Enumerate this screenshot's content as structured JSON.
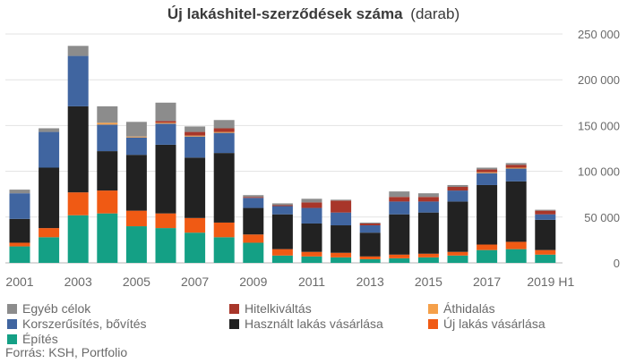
{
  "chart_data": {
    "type": "bar",
    "stacked": true,
    "title_bold": "Új lakáshitel-szerződések száma",
    "title_rest": "(darab)",
    "categories": [
      "2001",
      "2002",
      "2003",
      "2004",
      "2005",
      "2006",
      "2007",
      "2008",
      "2009",
      "2010",
      "2011",
      "2012",
      "2013",
      "2014",
      "2015",
      "2016",
      "2017",
      "2018",
      "2019 H1"
    ],
    "x_tick_labels": [
      "2001",
      "",
      "2003",
      "",
      "2005",
      "",
      "2007",
      "",
      "2009",
      "",
      "2011",
      "",
      "2013",
      "",
      "2015",
      "",
      "2017",
      "",
      "2019 H1"
    ],
    "y_ticks": [
      "0",
      "50 000",
      "100 000",
      "150 000",
      "200 000",
      "250 000"
    ],
    "y_tick_values": [
      0,
      50000,
      100000,
      150000,
      200000,
      250000
    ],
    "ylim": [
      0,
      250000
    ],
    "grid": true,
    "legend_position": "bottom",
    "series": [
      {
        "name": "Építés",
        "color": "#14a085",
        "values": [
          18000,
          28000,
          52000,
          54000,
          40000,
          38000,
          33000,
          28000,
          22000,
          8000,
          7000,
          6000,
          4000,
          5000,
          6000,
          8000,
          14000,
          15000,
          9000
        ]
      },
      {
        "name": "Új lakás vásárlása",
        "color": "#f05a14",
        "values": [
          4000,
          10000,
          25000,
          25000,
          17000,
          16000,
          16000,
          16000,
          9000,
          7000,
          5000,
          5000,
          3000,
          4000,
          4000,
          4000,
          6000,
          8000,
          5000
        ]
      },
      {
        "name": "Használt lakás vásárlása",
        "color": "#222222",
        "values": [
          26000,
          66000,
          94000,
          43000,
          61000,
          75000,
          66000,
          76000,
          29000,
          38000,
          31000,
          30000,
          26000,
          44000,
          45000,
          55000,
          65000,
          66000,
          33000
        ]
      },
      {
        "name": "Korszerűsítés, bővítés",
        "color": "#4065a0",
        "values": [
          28000,
          39000,
          55000,
          29000,
          19000,
          23000,
          23000,
          22000,
          11000,
          9000,
          17000,
          14000,
          8000,
          14000,
          12000,
          12000,
          13000,
          14000,
          6000
        ]
      },
      {
        "name": "Áthidalás",
        "color": "#f5a04a",
        "values": [
          0,
          0,
          0,
          2000,
          1000,
          1000,
          1000,
          1000,
          0,
          0,
          0,
          0,
          0,
          0,
          0,
          0,
          1000,
          1000,
          0
        ]
      },
      {
        "name": "Hitelkiváltás",
        "color": "#a8362a",
        "values": [
          0,
          0,
          0,
          0,
          0,
          2000,
          4000,
          4000,
          1000,
          1000,
          6000,
          13000,
          2000,
          5000,
          5000,
          4000,
          3000,
          3000,
          4000
        ]
      },
      {
        "name": "Egyéb célok",
        "color": "#8c8c8c",
        "values": [
          4000,
          4000,
          11000,
          18000,
          16000,
          20000,
          6000,
          9000,
          2000,
          2000,
          4000,
          1000,
          1000,
          6000,
          4000,
          2000,
          2000,
          2000,
          1000
        ]
      }
    ],
    "legend_order": [
      "Egyéb célok",
      "Hitelkiváltás",
      "Áthidalás",
      "Korszerűsítés, bővítés",
      "Használt lakás vásárlása",
      "Új lakás vásárlása",
      "Építés"
    ],
    "source": "Forrás: KSH, Portfolio"
  }
}
